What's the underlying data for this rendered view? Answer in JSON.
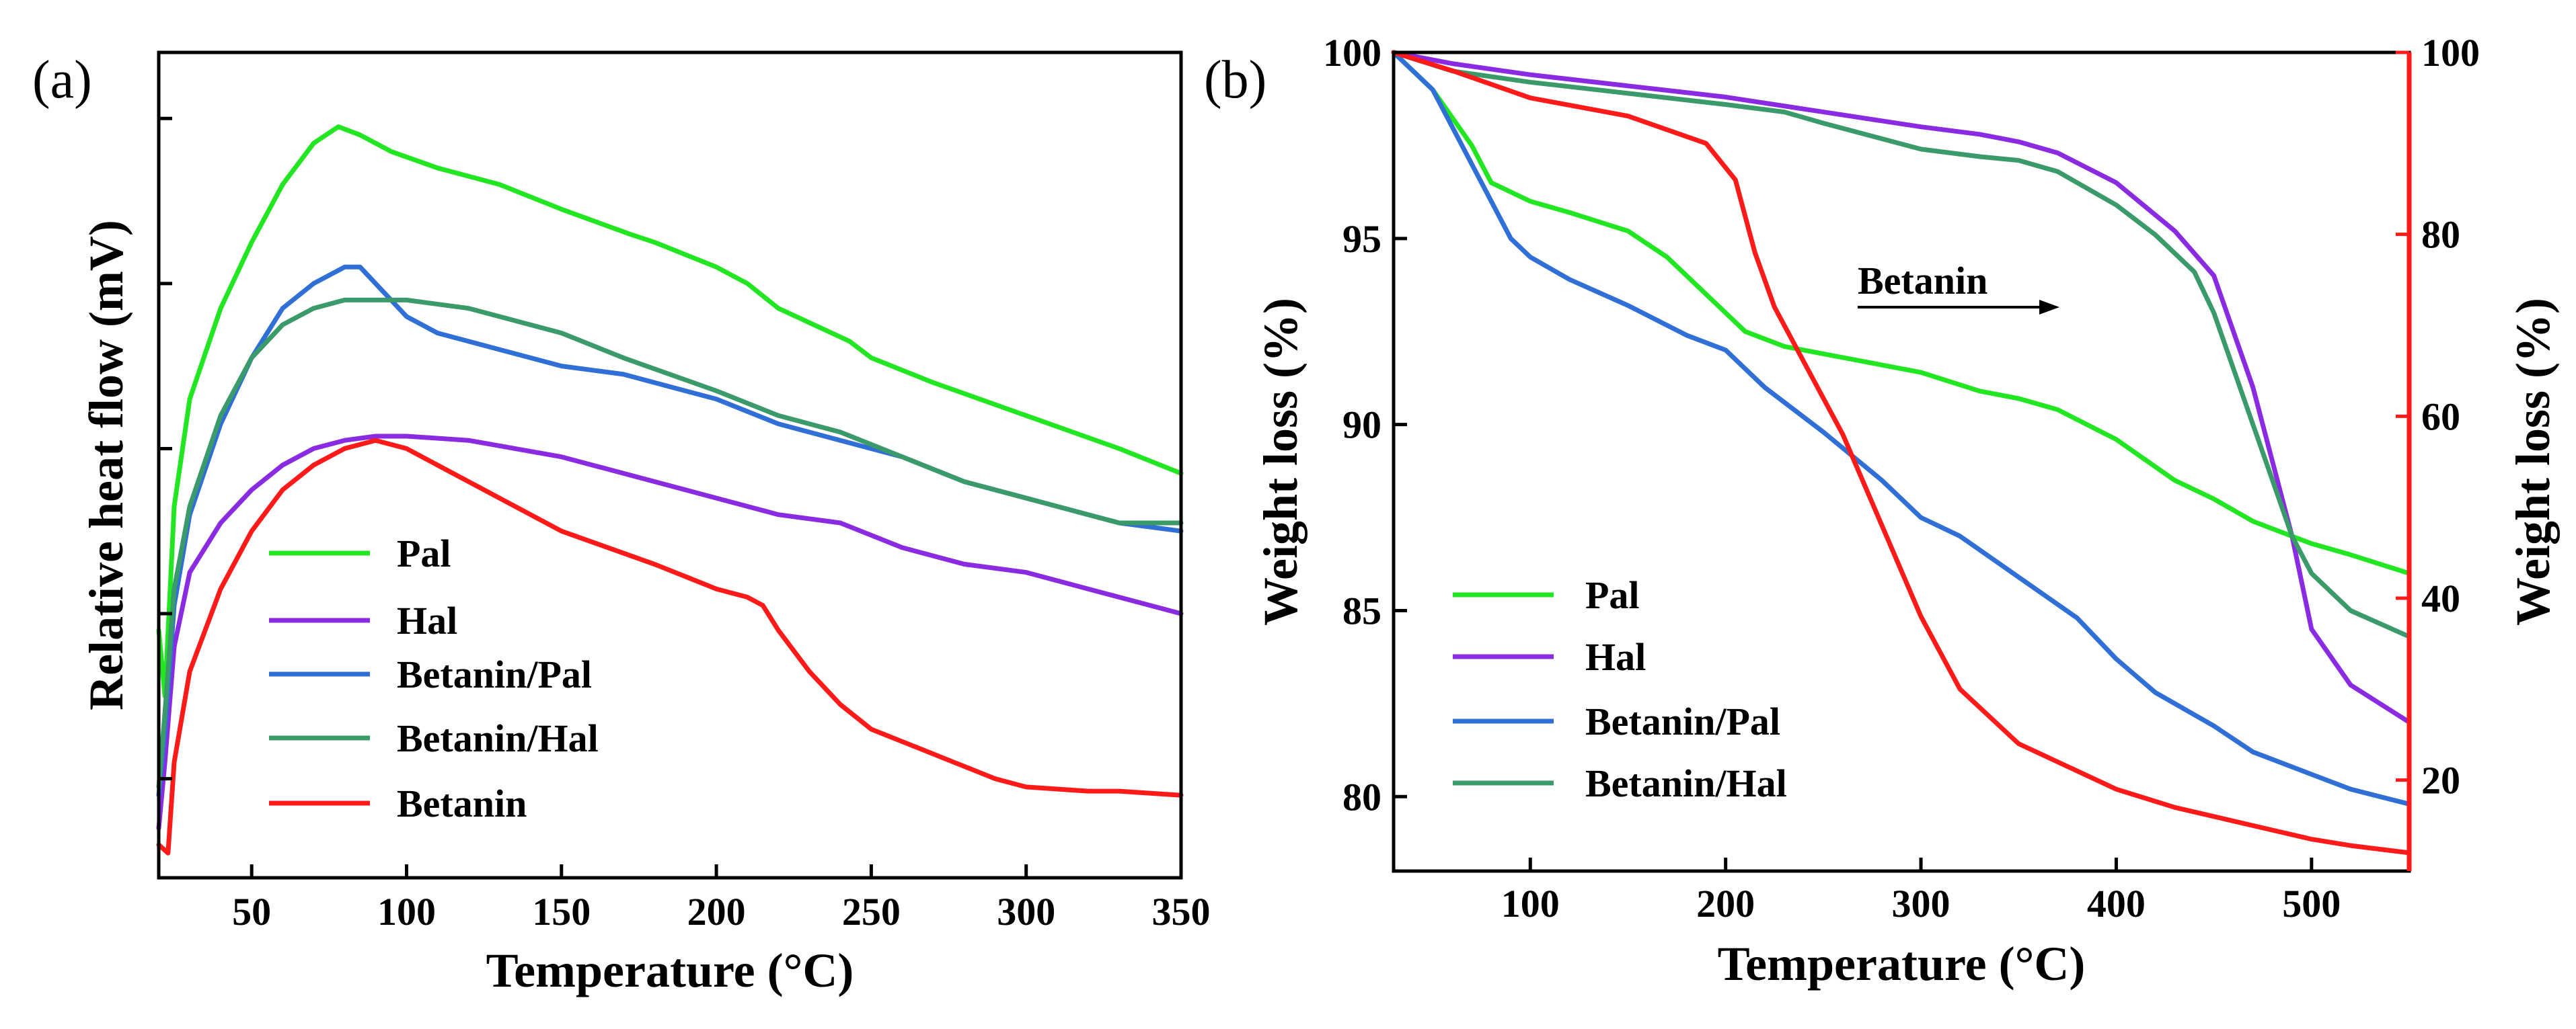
{
  "chart_data": [
    {
      "type": "line",
      "panel_label": "(a)",
      "xlabel": "Temperature (°C)",
      "ylabel": "Relative heat flow (mV)",
      "xlim": [
        20,
        350
      ],
      "ylim": [
        0,
        100
      ],
      "xticks": [
        50,
        100,
        150,
        200,
        250,
        300,
        350
      ],
      "yticks": [
        12,
        32,
        52,
        72,
        92
      ],
      "yticklabels_shown": false,
      "grid": false,
      "legend_position": "lower-left",
      "colors": {
        "Pal": "#22e622",
        "Hal": "#8a2be2",
        "Betanin/Pal": "#2f6fd6",
        "Betanin/Hal": "#3a9a6a",
        "Betanin": "#ff1a1a"
      },
      "series": [
        {
          "name": "Pal",
          "x": [
            20,
            22,
            25,
            30,
            40,
            50,
            60,
            70,
            78,
            85,
            95,
            110,
            130,
            150,
            172,
            180,
            200,
            210,
            220,
            243,
            250,
            270,
            300,
            330,
            350
          ],
          "values": [
            30,
            22,
            45,
            58,
            69,
            77,
            84,
            89,
            91,
            90,
            88,
            86,
            84,
            81,
            78,
            77,
            74,
            72,
            69,
            65,
            63,
            60,
            56,
            52,
            49
          ]
        },
        {
          "name": "Hal",
          "x": [
            20,
            22,
            25,
            30,
            40,
            50,
            60,
            70,
            80,
            90,
            100,
            120,
            150,
            170,
            200,
            220,
            240,
            260,
            280,
            300,
            320,
            330,
            350
          ],
          "values": [
            6,
            14,
            28,
            37,
            43,
            47,
            50,
            52,
            53,
            53.5,
            53.5,
            53,
            51,
            49,
            46,
            44,
            43,
            40,
            38,
            37,
            35,
            34,
            32
          ]
        },
        {
          "name": "Betanin/Pal",
          "x": [
            20,
            22,
            25,
            30,
            40,
            50,
            60,
            70,
            80,
            85,
            90,
            100,
            110,
            130,
            150,
            170,
            200,
            220,
            240,
            260,
            280,
            300,
            320,
            330,
            350
          ],
          "values": [
            10,
            18,
            33,
            44,
            55,
            63,
            69,
            72,
            74,
            74,
            72,
            68,
            66,
            64,
            62,
            61,
            58,
            55,
            53,
            51,
            48,
            46,
            44,
            43,
            42
          ]
        },
        {
          "name": "Betanin/Hal",
          "x": [
            20,
            22,
            25,
            30,
            40,
            50,
            60,
            70,
            80,
            90,
            100,
            120,
            150,
            170,
            200,
            220,
            240,
            260,
            280,
            300,
            320,
            330,
            350
          ],
          "values": [
            11,
            20,
            35,
            45,
            56,
            63,
            67,
            69,
            70,
            70,
            70,
            69,
            66,
            63,
            59,
            56,
            54,
            51,
            48,
            46,
            44,
            43,
            43
          ]
        },
        {
          "name": "Betanin",
          "x": [
            20,
            23,
            25,
            30,
            40,
            50,
            60,
            70,
            80,
            90,
            100,
            110,
            130,
            150,
            180,
            200,
            210,
            215,
            220,
            230,
            240,
            250,
            270,
            290,
            300,
            320,
            330,
            350
          ],
          "values": [
            4,
            3,
            14,
            25,
            35,
            42,
            47,
            50,
            52,
            53,
            52,
            50,
            46,
            42,
            38,
            35,
            34,
            33,
            30,
            25,
            21,
            18,
            15,
            12,
            11,
            10.5,
            10.5,
            10
          ]
        }
      ],
      "legend": [
        "Pal",
        "Hal",
        "Betanin/Pal",
        "Betanin/Hal",
        "Betanin"
      ]
    },
    {
      "type": "line",
      "panel_label": "(b)",
      "xlabel": "Temperature (°C)",
      "ylabel_left": "Weight loss (%)",
      "ylabel_right": "Weight loss (%)",
      "xlim": [
        30,
        550
      ],
      "ylim_left": [
        78,
        100
      ],
      "ylim_right": [
        10,
        100
      ],
      "xticks": [
        100,
        200,
        300,
        400,
        500
      ],
      "yticks_left": [
        80,
        85,
        90,
        95,
        100
      ],
      "yticks_right": [
        20,
        40,
        60,
        80,
        100
      ],
      "right_axis_color": "#ff1a1a",
      "grid": false,
      "legend_position": "lower-left",
      "annotation": {
        "text": "Betanin",
        "arrow": "right",
        "x": 290,
        "y": 93.8
      },
      "colors": {
        "Pal": "#22e622",
        "Hal": "#8a2be2",
        "Betanin/Pal": "#2f6fd6",
        "Betanin/Hal": "#3a9a6a",
        "Betanin": "#ff1a1a"
      },
      "series": [
        {
          "name": "Pal",
          "axis": "left",
          "x": [
            30,
            50,
            70,
            80,
            100,
            120,
            150,
            170,
            200,
            210,
            230,
            250,
            300,
            330,
            350,
            370,
            400,
            430,
            450,
            470,
            500,
            520,
            550
          ],
          "values": [
            100,
            99,
            97.5,
            96.5,
            96,
            95.7,
            95.2,
            94.5,
            93,
            92.5,
            92.1,
            91.9,
            91.4,
            90.9,
            90.7,
            90.4,
            89.6,
            88.5,
            88,
            87.4,
            86.8,
            86.5,
            86
          ]
        },
        {
          "name": "Hal",
          "axis": "left",
          "x": [
            30,
            60,
            100,
            150,
            200,
            250,
            300,
            330,
            350,
            370,
            400,
            430,
            450,
            470,
            490,
            500,
            520,
            550
          ],
          "values": [
            100,
            99.7,
            99.4,
            99.1,
            98.8,
            98.4,
            98,
            97.8,
            97.6,
            97.3,
            96.5,
            95.2,
            94,
            91,
            87,
            84.5,
            83,
            82
          ]
        },
        {
          "name": "Betanin/Pal",
          "axis": "left",
          "x": [
            30,
            50,
            70,
            90,
            100,
            120,
            150,
            180,
            200,
            220,
            250,
            280,
            300,
            320,
            350,
            380,
            400,
            420,
            450,
            470,
            500,
            520,
            550
          ],
          "values": [
            100,
            99,
            97,
            95,
            94.5,
            93.9,
            93.2,
            92.4,
            92,
            91,
            89.8,
            88.5,
            87.5,
            87,
            85.9,
            84.8,
            83.7,
            82.8,
            81.9,
            81.2,
            80.6,
            80.2,
            79.8
          ]
        },
        {
          "name": "Betanin/Hal",
          "axis": "left",
          "x": [
            30,
            60,
            100,
            150,
            200,
            230,
            250,
            300,
            330,
            350,
            370,
            400,
            420,
            440,
            450,
            470,
            490,
            500,
            520,
            550
          ],
          "values": [
            100,
            99.5,
            99.2,
            98.9,
            98.6,
            98.4,
            98.1,
            97.4,
            97.2,
            97.1,
            96.8,
            95.9,
            95.1,
            94.1,
            93,
            90,
            87,
            86,
            85,
            84.3
          ]
        },
        {
          "name": "Betanin",
          "axis": "right",
          "x": [
            30,
            60,
            100,
            150,
            190,
            205,
            215,
            225,
            240,
            260,
            280,
            300,
            320,
            350,
            380,
            400,
            430,
            450,
            480,
            500,
            520,
            550
          ],
          "values": [
            100,
            98,
            95,
            93,
            90,
            86,
            78,
            72,
            66,
            58,
            48,
            38,
            30,
            24,
            21,
            19,
            17,
            16,
            14.5,
            13.5,
            12.8,
            12
          ]
        }
      ],
      "legend": [
        "Pal",
        "Hal",
        "Betanin/Pal",
        "Betanin/Hal"
      ]
    }
  ]
}
